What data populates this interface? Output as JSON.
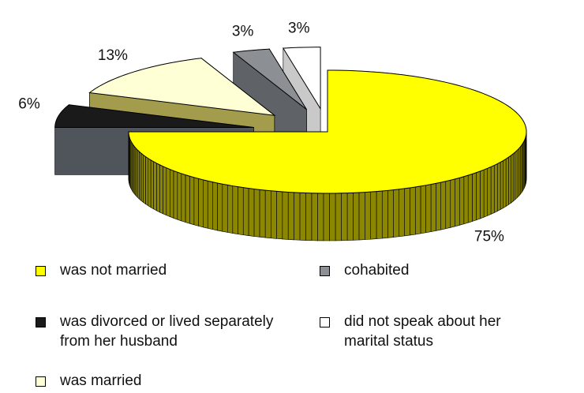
{
  "chart_data": {
    "type": "pie3d",
    "series": [
      {
        "name": "was not married",
        "color": "#ffff00",
        "side_color": "#8c8700",
        "value": 75,
        "value_label": "75%"
      },
      {
        "name": "was divorced or lived separately from her husband",
        "color": "#1a1a1a",
        "side_color": "#50555b",
        "value": 6,
        "value_label": "6%"
      },
      {
        "name": "was married",
        "color": "#ffffd6",
        "side_color": "#a39c4c",
        "value": 13,
        "value_label": "13%"
      },
      {
        "name": "cohabited",
        "color": "#8c9094",
        "side_color": "#5f6367",
        "value": 3,
        "value_label": "3%"
      },
      {
        "name": "did not speak about her marital status",
        "color": "#ffffff",
        "side_color": "#c9c9c9",
        "value": 3,
        "value_label": "3%"
      }
    ]
  }
}
